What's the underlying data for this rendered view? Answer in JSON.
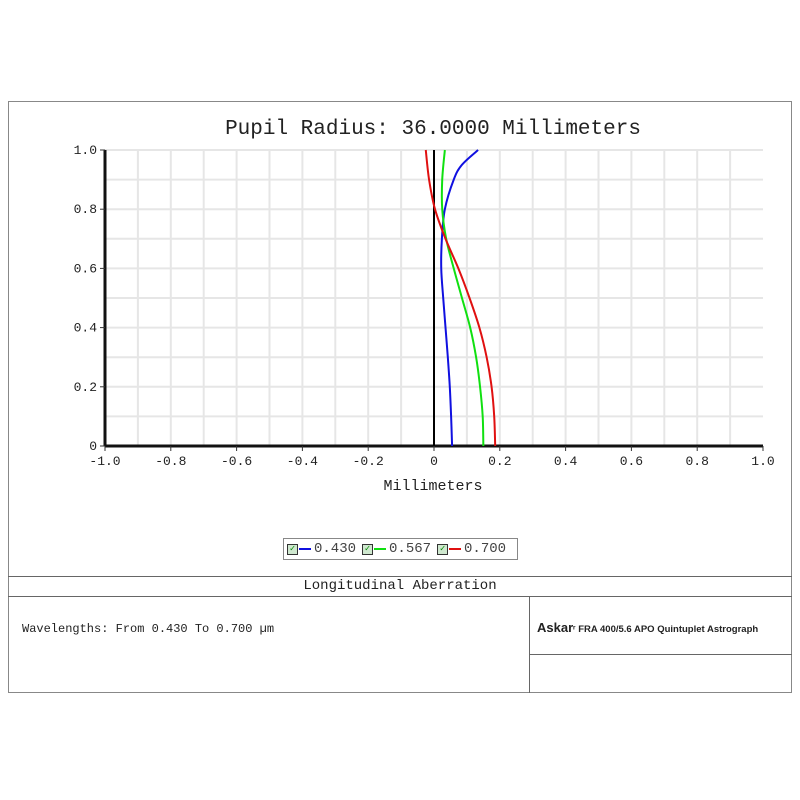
{
  "chart_data": {
    "type": "line",
    "title": "Pupil Radius: 36.0000 Millimeters",
    "xlabel": "Millimeters",
    "ylabel": "",
    "xlim": [
      -1.0,
      1.0
    ],
    "ylim": [
      0,
      1.0
    ],
    "grid": true,
    "xticks": [
      "-1.0",
      "-0.8",
      "-0.6",
      "-0.4",
      "-0.2",
      "0",
      "0.2",
      "0.4",
      "0.6",
      "0.8",
      "1.0"
    ],
    "yticks": [
      "0",
      "0.2",
      "0.4",
      "0.6",
      "0.8",
      "1.0"
    ],
    "legend_position": "bottom",
    "series": [
      {
        "name": "0.430",
        "color": "#1010e0",
        "points": [
          [
            0.055,
            0
          ],
          [
            0.052,
            0.1
          ],
          [
            0.048,
            0.2
          ],
          [
            0.042,
            0.3
          ],
          [
            0.035,
            0.4
          ],
          [
            0.028,
            0.5
          ],
          [
            0.022,
            0.6
          ],
          [
            0.024,
            0.7
          ],
          [
            0.033,
            0.8
          ],
          [
            0.06,
            0.9
          ],
          [
            0.085,
            0.95
          ],
          [
            0.134,
            1.0
          ]
        ]
      },
      {
        "name": "0.567",
        "color": "#10e010",
        "points": [
          [
            0.15,
            0
          ],
          [
            0.148,
            0.1
          ],
          [
            0.14,
            0.2
          ],
          [
            0.128,
            0.3
          ],
          [
            0.11,
            0.4
          ],
          [
            0.085,
            0.5
          ],
          [
            0.06,
            0.6
          ],
          [
            0.037,
            0.7
          ],
          [
            0.025,
            0.8
          ],
          [
            0.025,
            0.9
          ],
          [
            0.033,
            1.0
          ]
        ]
      },
      {
        "name": "0.700",
        "color": "#e01010",
        "points": [
          [
            0.186,
            0
          ],
          [
            0.183,
            0.1
          ],
          [
            0.175,
            0.2
          ],
          [
            0.16,
            0.3
          ],
          [
            0.138,
            0.4
          ],
          [
            0.108,
            0.5
          ],
          [
            0.074,
            0.6
          ],
          [
            0.035,
            0.7
          ],
          [
            0.003,
            0.8
          ],
          [
            -0.015,
            0.9
          ],
          [
            -0.025,
            1.0
          ]
        ]
      }
    ]
  },
  "footer": {
    "plot_type": "Longitudinal Aberration",
    "wavelengths": "Wavelengths: From 0.430 To 0.700 µm",
    "brand": "Askar",
    "lens": "FRA 400/5.6 APO Quintuplet Astrograph"
  }
}
